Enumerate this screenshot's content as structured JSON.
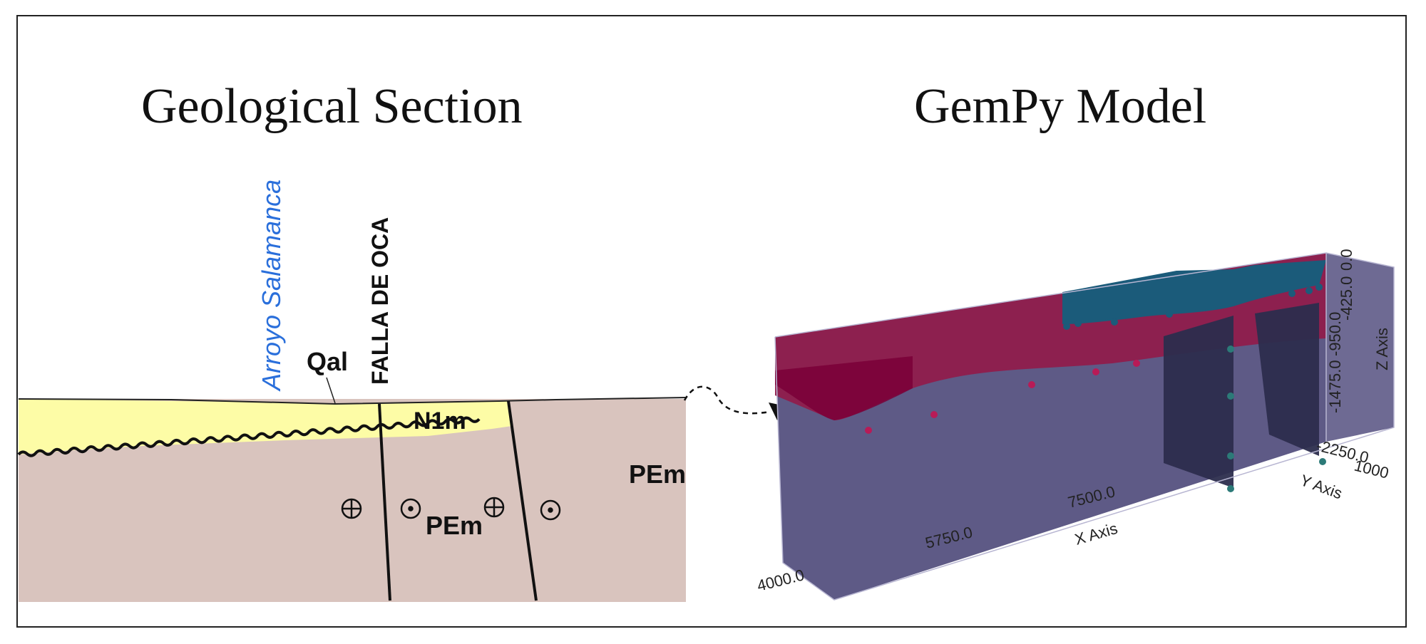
{
  "titles": {
    "left": "Geological Section",
    "right": "GemPy Model"
  },
  "section": {
    "river": "Arroyo Salamanca",
    "fault": "FALLA DE OCA",
    "units": {
      "qal": "Qal",
      "n1m": "N1m",
      "pem_center": "PEm",
      "pem_right": "PEm"
    }
  },
  "model": {
    "x_axis": "X Axis",
    "y_axis": "Y Axis",
    "z_axis": "Z Axis",
    "x_ticks": [
      "4000.0",
      "5750.0",
      "7500.0"
    ],
    "y_ticks": "-2250.0",
    "y_ticks_end": "1000",
    "z_ticks": "-1475.0",
    "z_ticks_top": "0.0",
    "z_ticks_mid": "-425.0",
    "z_ticks_mid2": "-950.0"
  },
  "colors": {
    "yellow_unit": "#fdfca6",
    "pink_unit": "#d9c4be",
    "box_body": "#5e5a86",
    "red_layer": "#7a0037",
    "blue_layer": "#1b5b7a",
    "river_text": "#2a6fdb"
  }
}
